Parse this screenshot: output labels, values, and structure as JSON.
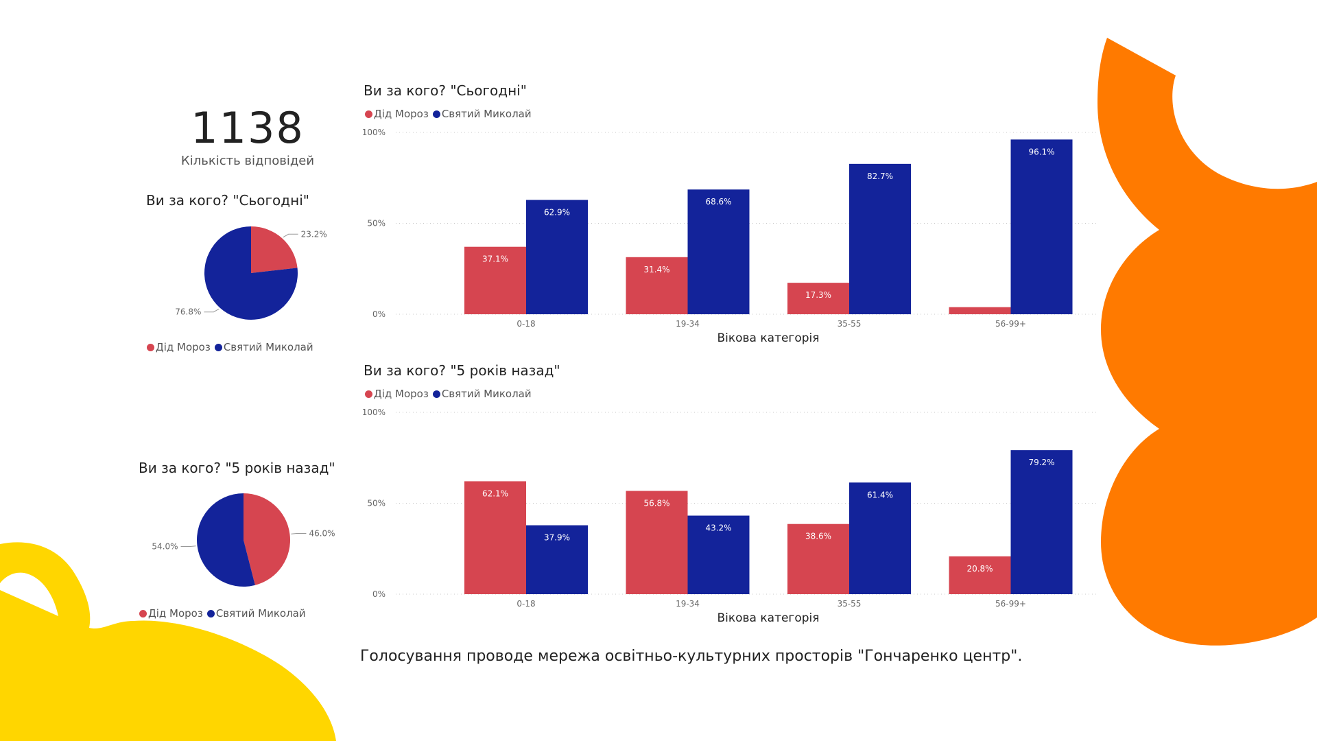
{
  "colors": {
    "ded_moroz": "#D64550",
    "mykolai": "#13239A",
    "orange_shape": "#FF7A00",
    "yellow_shape": "#FFD600",
    "gridline": "#C8C8C8",
    "label_text": "#666666"
  },
  "kpi": {
    "value": "1138",
    "label": "Кількість відповідей"
  },
  "legend": {
    "ded_moroz": "Дід Мороз",
    "mykolai": "Святий Миколай"
  },
  "footer": "Голосування проводе мережа освітньо-культурних просторів \"Гончаренко центр\".",
  "chart_data": [
    {
      "id": "pie_today",
      "type": "pie",
      "title": "Ви за кого? \"Сьогодні\"",
      "legend_position": "bottom",
      "slices": [
        {
          "name": "Дід Мороз",
          "value": 23.2,
          "label": "23.2%"
        },
        {
          "name": "Святий Миколай",
          "value": 76.8,
          "label": "76.8%"
        }
      ]
    },
    {
      "id": "pie_5y",
      "type": "pie",
      "title": "Ви за кого? \"5 років назад\"",
      "legend_position": "bottom",
      "slices": [
        {
          "name": "Дід Мороз",
          "value": 46.0,
          "label": "46.0%"
        },
        {
          "name": "Святий Миколай",
          "value": 54.0,
          "label": "54.0%"
        }
      ]
    },
    {
      "id": "bar_today",
      "type": "bar",
      "title": "Ви за кого? \"Сьогодні\"",
      "xlabel": "Вікова категорія",
      "ylabel": "",
      "ylim": [
        0,
        100
      ],
      "yticks": [
        "0%",
        "50%",
        "100%"
      ],
      "grid": true,
      "legend_position": "top-left",
      "categories": [
        "0-18",
        "19-34",
        "35-55",
        "56-99+"
      ],
      "series": [
        {
          "name": "Дід Мороз",
          "values": [
            37.1,
            31.4,
            17.3,
            3.9
          ],
          "labels": [
            "37.1%",
            "31.4%",
            "17.3%",
            ""
          ]
        },
        {
          "name": "Святий Миколай",
          "values": [
            62.9,
            68.6,
            82.7,
            96.1
          ],
          "labels": [
            "62.9%",
            "68.6%",
            "82.7%",
            "96.1%"
          ]
        }
      ]
    },
    {
      "id": "bar_5y",
      "type": "bar",
      "title": "Ви за кого? \"5 років назад\"",
      "xlabel": "Вікова категорія",
      "ylabel": "",
      "ylim": [
        0,
        100
      ],
      "yticks": [
        "0%",
        "50%",
        "100%"
      ],
      "grid": true,
      "legend_position": "top-left",
      "categories": [
        "0-18",
        "19-34",
        "35-55",
        "56-99+"
      ],
      "series": [
        {
          "name": "Дід Мороз",
          "values": [
            62.1,
            56.8,
            38.6,
            20.8
          ],
          "labels": [
            "62.1%",
            "56.8%",
            "38.6%",
            "20.8%"
          ]
        },
        {
          "name": "Святий Миколай",
          "values": [
            37.9,
            43.2,
            61.4,
            79.2
          ],
          "labels": [
            "37.9%",
            "43.2%",
            "61.4%",
            "79.2%"
          ]
        }
      ]
    }
  ]
}
